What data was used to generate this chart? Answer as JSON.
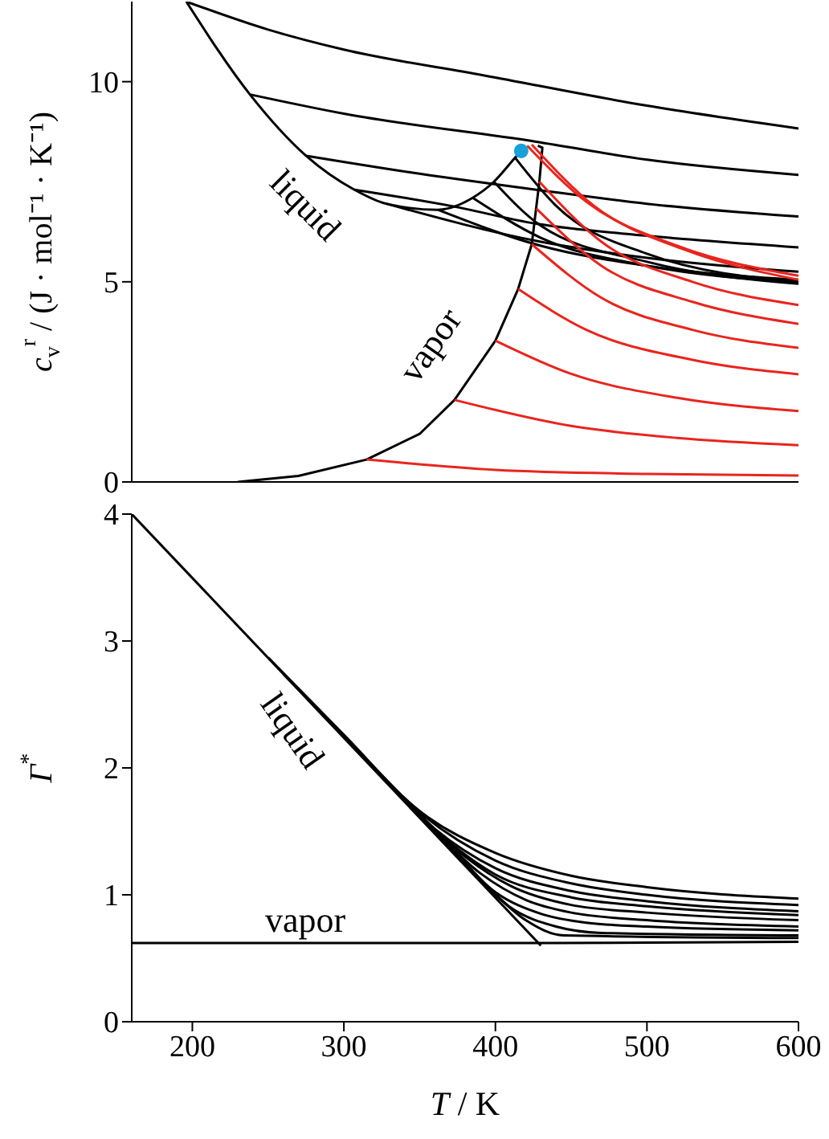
{
  "chart_data": [
    {
      "type": "line",
      "ylabel": "c$_{v}$$^{r}$ / (J · mol⁻¹ · K⁻¹)",
      "xlim": [
        160,
        600
      ],
      "xticks": [
        200,
        300,
        400,
        500,
        600
      ],
      "ylim": [
        0,
        12
      ],
      "yticks": [
        0,
        5,
        10
      ],
      "tick_labels": "y",
      "grid": false,
      "legend": false,
      "marker": "none",
      "line_style": "solid",
      "annotations": [
        "liquid",
        "vapor"
      ],
      "series": [
        {
          "color": "#000000",
          "x": [
            196,
            238,
            275,
            307,
            328,
            362,
            385,
            399,
            413,
            417
          ],
          "values": [
            12,
            9.68,
            8.15,
            7.3,
            6.95,
            6.8,
            7.1,
            7.5,
            8.1,
            8.27
          ]
        },
        {
          "color": "#000000",
          "x": [
            230,
            270,
            315,
            350,
            373,
            400,
            415,
            424,
            429,
            431,
            428
          ],
          "values": [
            0,
            0.15,
            0.56,
            1.2,
            2.05,
            3.53,
            4.82,
            5.94,
            7.5,
            8.35,
            8.4
          ]
        },
        {
          "color": "#000000",
          "x": [
            196,
            250,
            300,
            392,
            500,
            600
          ],
          "values": [
            12,
            11.3,
            10.8,
            10.16,
            9.4,
            8.83
          ]
        },
        {
          "color": "#000000",
          "x": [
            238,
            300,
            427,
            500,
            600
          ],
          "values": [
            9.68,
            9.2,
            8.5,
            8.05,
            7.67
          ]
        },
        {
          "color": "#000000",
          "x": [
            275,
            350,
            427,
            500,
            600
          ],
          "values": [
            8.15,
            7.7,
            7.3,
            6.95,
            6.63
          ]
        },
        {
          "color": "#000000",
          "x": [
            307,
            370,
            427,
            500,
            600
          ],
          "values": [
            7.3,
            6.9,
            6.45,
            6.15,
            5.86
          ]
        },
        {
          "color": "#000000",
          "x": [
            328,
            430,
            500,
            600
          ],
          "values": [
            6.95,
            6.0,
            5.6,
            5.25
          ]
        },
        {
          "color": "#000000",
          "x": [
            362,
            430,
            500,
            600
          ],
          "values": [
            6.8,
            5.9,
            5.4,
            5.05
          ]
        },
        {
          "color": "#000000",
          "x": [
            385,
            430,
            500,
            600
          ],
          "values": [
            7.1,
            6.1,
            5.4,
            5.0
          ]
        },
        {
          "color": "#000000",
          "x": [
            399,
            430,
            500,
            600
          ],
          "values": [
            7.5,
            6.4,
            5.5,
            4.95
          ]
        },
        {
          "color": "#000000",
          "x": [
            413,
            440,
            500,
            600
          ],
          "values": [
            8.1,
            6.9,
            5.7,
            5.0
          ]
        },
        {
          "color": "#e8251f",
          "x": [
            315,
            400,
            500,
            600
          ],
          "values": [
            0.56,
            0.3,
            0.2,
            0.16
          ]
        },
        {
          "color": "#e8251f",
          "x": [
            373,
            450,
            520,
            600
          ],
          "values": [
            2.05,
            1.4,
            1.1,
            0.92
          ]
        },
        {
          "color": "#e8251f",
          "x": [
            400,
            450,
            520,
            600
          ],
          "values": [
            3.53,
            2.7,
            2.1,
            1.77
          ]
        },
        {
          "color": "#e8251f",
          "x": [
            415,
            460,
            530,
            600
          ],
          "values": [
            4.82,
            3.8,
            3.05,
            2.69
          ]
        },
        {
          "color": "#e8251f",
          "x": [
            424,
            470,
            530,
            600
          ],
          "values": [
            5.94,
            4.6,
            3.8,
            3.35
          ]
        },
        {
          "color": "#e8251f",
          "x": [
            427,
            470,
            530,
            600
          ],
          "values": [
            6.83,
            5.4,
            4.5,
            3.95
          ]
        },
        {
          "color": "#e8251f",
          "x": [
            429,
            470,
            530,
            600
          ],
          "values": [
            7.5,
            6.0,
            5.0,
            4.42
          ]
        },
        {
          "color": "#e8251f",
          "x": [
            421,
            460,
            520,
            600
          ],
          "values": [
            8.4,
            7.0,
            5.9,
            5.15
          ]
        },
        {
          "color": "#e8251f",
          "x": [
            424,
            465,
            525,
            600
          ],
          "values": [
            8.43,
            6.9,
            5.8,
            5.05
          ]
        },
        {
          "type": "scatter",
          "marker": "circle",
          "color": "#1aa0d8",
          "x": [
            417
          ],
          "values": [
            8.27
          ]
        }
      ]
    },
    {
      "type": "line",
      "xlabel": "T / K",
      "ylabel": "Γ$^{*}$",
      "xlim": [
        160,
        600
      ],
      "xticks": [
        200,
        300,
        400,
        500,
        600
      ],
      "ylim": [
        0,
        4
      ],
      "yticks": [
        0,
        1,
        2,
        3,
        4
      ],
      "grid": false,
      "legend": false,
      "marker": "none",
      "line_style": "solid",
      "annotations": [
        "liquid",
        "vapor"
      ],
      "series": [
        {
          "color": "#000000",
          "x": [
            160,
            430
          ],
          "values": [
            4.0,
            0.6
          ]
        },
        {
          "color": "#000000",
          "x": [
            160,
            440,
            600
          ],
          "values": [
            0.62,
            0.62,
            0.63
          ]
        },
        {
          "color": "#000000",
          "x": [
            250,
            300,
            350,
            400,
            450,
            500,
            600
          ],
          "values": [
            2.87,
            2.26,
            1.66,
            1.33,
            1.15,
            1.06,
            0.97
          ]
        },
        {
          "color": "#000000",
          "x": [
            260,
            310,
            350,
            400,
            450,
            500,
            600
          ],
          "values": [
            2.74,
            2.13,
            1.65,
            1.27,
            1.09,
            1.0,
            0.92
          ]
        },
        {
          "color": "#000000",
          "x": [
            270,
            320,
            360,
            400,
            450,
            500,
            600
          ],
          "values": [
            2.62,
            2.0,
            1.52,
            1.21,
            1.03,
            0.95,
            0.87
          ]
        },
        {
          "color": "#000000",
          "x": [
            280,
            330,
            370,
            400,
            450,
            500,
            600
          ],
          "values": [
            2.49,
            1.88,
            1.41,
            1.16,
            0.98,
            0.91,
            0.84
          ]
        },
        {
          "color": "#000000",
          "x": [
            290,
            340,
            380,
            410,
            450,
            500,
            600
          ],
          "values": [
            2.37,
            1.75,
            1.3,
            1.07,
            0.92,
            0.86,
            0.8
          ]
        },
        {
          "color": "#000000",
          "x": [
            300,
            350,
            390,
            420,
            450,
            500,
            600
          ],
          "values": [
            2.24,
            1.63,
            1.17,
            0.96,
            0.86,
            0.8,
            0.75
          ]
        },
        {
          "color": "#000000",
          "x": [
            320,
            365,
            400,
            430,
            460,
            500,
            600
          ],
          "values": [
            1.99,
            1.44,
            1.02,
            0.85,
            0.78,
            0.75,
            0.72
          ]
        },
        {
          "color": "#000000",
          "x": [
            340,
            380,
            410,
            440,
            470,
            600
          ],
          "values": [
            1.74,
            1.25,
            0.9,
            0.75,
            0.7,
            0.68
          ]
        },
        {
          "color": "#000000",
          "x": [
            360,
            395,
            420,
            445,
            600
          ],
          "values": [
            1.49,
            1.06,
            0.8,
            0.68,
            0.66
          ]
        }
      ]
    }
  ]
}
